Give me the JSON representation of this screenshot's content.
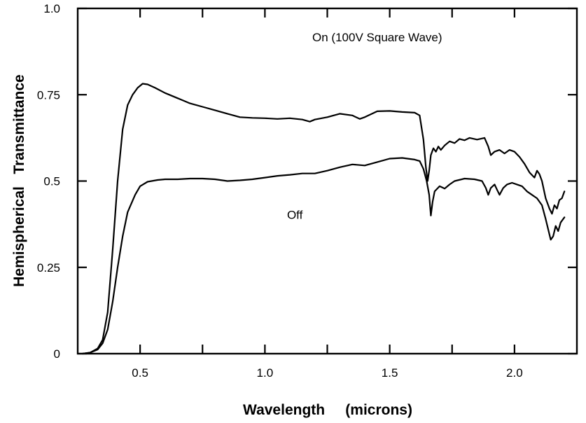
{
  "chart_data": {
    "type": "line",
    "title": "",
    "xlabel": "Wavelength     (microns)",
    "ylabel": "Hemispherical   Transmittance",
    "xlim": [
      0.25,
      2.25
    ],
    "ylim": [
      0,
      1.0
    ],
    "grid": false,
    "x_ticks": [
      {
        "value": 0.5,
        "label": "0.5"
      },
      {
        "value": 1.0,
        "label": "1.0"
      },
      {
        "value": 1.5,
        "label": "1.5"
      },
      {
        "value": 2.0,
        "label": "2.0"
      }
    ],
    "x_minor_ticks": [
      0.75,
      1.25,
      1.75
    ],
    "y_ticks": [
      {
        "value": 0,
        "label": "0"
      },
      {
        "value": 0.25,
        "label": "0.25"
      },
      {
        "value": 0.5,
        "label": "0.5"
      },
      {
        "value": 0.75,
        "label": "0.75"
      },
      {
        "value": 1.0,
        "label": "1.0"
      }
    ],
    "annotations": [
      {
        "text": "On (100V Square Wave)",
        "x": 1.45,
        "y": 0.905
      },
      {
        "text": "Off",
        "x": 1.12,
        "y": 0.39
      }
    ],
    "series": [
      {
        "points": [
          [
            0.27,
            0.0
          ],
          [
            0.3,
            0.003
          ],
          [
            0.33,
            0.015
          ],
          [
            0.35,
            0.04
          ],
          [
            0.37,
            0.12
          ],
          [
            0.39,
            0.3
          ],
          [
            0.41,
            0.5
          ],
          [
            0.43,
            0.65
          ],
          [
            0.45,
            0.72
          ],
          [
            0.47,
            0.75
          ],
          [
            0.49,
            0.77
          ],
          [
            0.51,
            0.782
          ],
          [
            0.53,
            0.78
          ],
          [
            0.56,
            0.77
          ],
          [
            0.6,
            0.755
          ],
          [
            0.65,
            0.74
          ],
          [
            0.7,
            0.725
          ],
          [
            0.75,
            0.715
          ],
          [
            0.8,
            0.705
          ],
          [
            0.85,
            0.695
          ],
          [
            0.9,
            0.685
          ],
          [
            0.95,
            0.683
          ],
          [
            1.0,
            0.682
          ],
          [
            1.05,
            0.68
          ],
          [
            1.1,
            0.682
          ],
          [
            1.15,
            0.678
          ],
          [
            1.18,
            0.672
          ],
          [
            1.2,
            0.678
          ],
          [
            1.25,
            0.685
          ],
          [
            1.3,
            0.695
          ],
          [
            1.35,
            0.69
          ],
          [
            1.38,
            0.68
          ],
          [
            1.4,
            0.685
          ],
          [
            1.45,
            0.702
          ],
          [
            1.5,
            0.703
          ],
          [
            1.55,
            0.7
          ],
          [
            1.6,
            0.698
          ],
          [
            1.62,
            0.69
          ],
          [
            1.635,
            0.62
          ],
          [
            1.645,
            0.54
          ],
          [
            1.652,
            0.5
          ],
          [
            1.658,
            0.53
          ],
          [
            1.665,
            0.575
          ],
          [
            1.675,
            0.595
          ],
          [
            1.685,
            0.585
          ],
          [
            1.695,
            0.6
          ],
          [
            1.705,
            0.59
          ],
          [
            1.72,
            0.603
          ],
          [
            1.74,
            0.615
          ],
          [
            1.76,
            0.61
          ],
          [
            1.78,
            0.622
          ],
          [
            1.8,
            0.618
          ],
          [
            1.82,
            0.625
          ],
          [
            1.85,
            0.62
          ],
          [
            1.88,
            0.625
          ],
          [
            1.895,
            0.6
          ],
          [
            1.905,
            0.575
          ],
          [
            1.92,
            0.585
          ],
          [
            1.94,
            0.59
          ],
          [
            1.96,
            0.58
          ],
          [
            1.98,
            0.59
          ],
          [
            2.0,
            0.585
          ],
          [
            2.02,
            0.57
          ],
          [
            2.04,
            0.55
          ],
          [
            2.06,
            0.525
          ],
          [
            2.08,
            0.51
          ],
          [
            2.09,
            0.53
          ],
          [
            2.1,
            0.52
          ],
          [
            2.11,
            0.5
          ],
          [
            2.125,
            0.45
          ],
          [
            2.14,
            0.42
          ],
          [
            2.15,
            0.405
          ],
          [
            2.16,
            0.43
          ],
          [
            2.17,
            0.42
          ],
          [
            2.18,
            0.445
          ],
          [
            2.19,
            0.45
          ],
          [
            2.2,
            0.47
          ]
        ]
      },
      {
        "points": [
          [
            0.27,
            0.0
          ],
          [
            0.3,
            0.003
          ],
          [
            0.33,
            0.012
          ],
          [
            0.35,
            0.03
          ],
          [
            0.37,
            0.07
          ],
          [
            0.39,
            0.15
          ],
          [
            0.41,
            0.25
          ],
          [
            0.43,
            0.34
          ],
          [
            0.45,
            0.41
          ],
          [
            0.48,
            0.46
          ],
          [
            0.5,
            0.485
          ],
          [
            0.53,
            0.498
          ],
          [
            0.57,
            0.503
          ],
          [
            0.6,
            0.505
          ],
          [
            0.65,
            0.505
          ],
          [
            0.7,
            0.507
          ],
          [
            0.75,
            0.507
          ],
          [
            0.8,
            0.505
          ],
          [
            0.85,
            0.5
          ],
          [
            0.9,
            0.502
          ],
          [
            0.95,
            0.505
          ],
          [
            1.0,
            0.51
          ],
          [
            1.05,
            0.515
          ],
          [
            1.1,
            0.518
          ],
          [
            1.15,
            0.522
          ],
          [
            1.2,
            0.522
          ],
          [
            1.25,
            0.53
          ],
          [
            1.3,
            0.54
          ],
          [
            1.35,
            0.548
          ],
          [
            1.4,
            0.545
          ],
          [
            1.45,
            0.555
          ],
          [
            1.5,
            0.565
          ],
          [
            1.55,
            0.567
          ],
          [
            1.6,
            0.562
          ],
          [
            1.62,
            0.558
          ],
          [
            1.635,
            0.535
          ],
          [
            1.648,
            0.5
          ],
          [
            1.658,
            0.46
          ],
          [
            1.665,
            0.4
          ],
          [
            1.672,
            0.44
          ],
          [
            1.68,
            0.47
          ],
          [
            1.7,
            0.485
          ],
          [
            1.72,
            0.478
          ],
          [
            1.74,
            0.49
          ],
          [
            1.76,
            0.5
          ],
          [
            1.8,
            0.507
          ],
          [
            1.84,
            0.505
          ],
          [
            1.87,
            0.5
          ],
          [
            1.885,
            0.48
          ],
          [
            1.895,
            0.46
          ],
          [
            1.905,
            0.48
          ],
          [
            1.92,
            0.49
          ],
          [
            1.93,
            0.475
          ],
          [
            1.94,
            0.46
          ],
          [
            1.955,
            0.48
          ],
          [
            1.97,
            0.49
          ],
          [
            1.99,
            0.495
          ],
          [
            2.01,
            0.49
          ],
          [
            2.03,
            0.485
          ],
          [
            2.05,
            0.47
          ],
          [
            2.07,
            0.46
          ],
          [
            2.09,
            0.45
          ],
          [
            2.11,
            0.43
          ],
          [
            2.125,
            0.39
          ],
          [
            2.135,
            0.36
          ],
          [
            2.145,
            0.33
          ],
          [
            2.155,
            0.34
          ],
          [
            2.165,
            0.37
          ],
          [
            2.175,
            0.355
          ],
          [
            2.185,
            0.38
          ],
          [
            2.2,
            0.395
          ]
        ]
      }
    ]
  }
}
